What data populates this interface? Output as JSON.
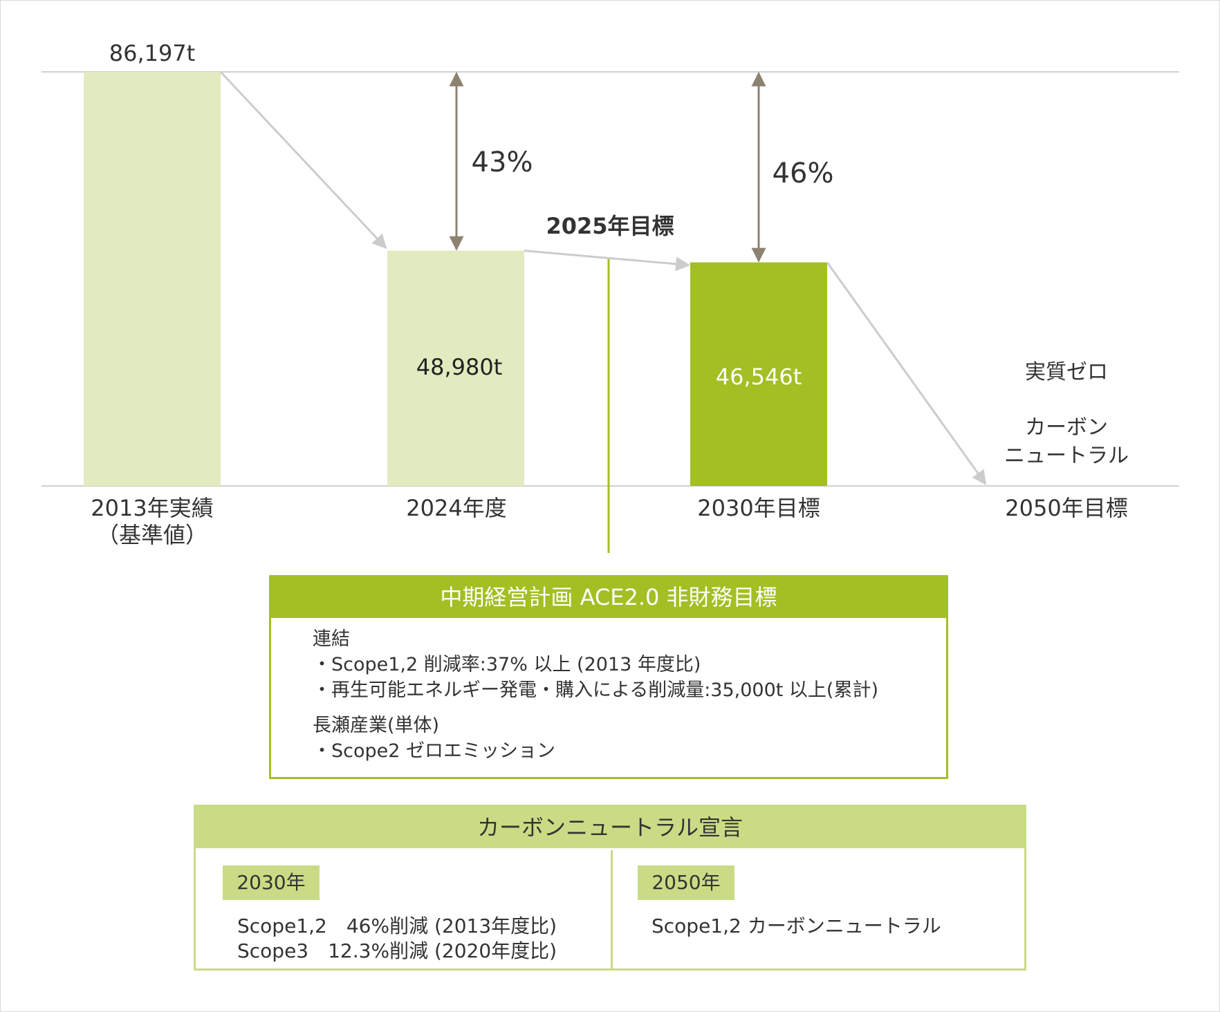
{
  "chart_data": {
    "type": "bar",
    "unit": "t",
    "categories": [
      "2013年実績\n（基準値）",
      "2024年度",
      "2030年目標",
      "2050年目標"
    ],
    "values": [
      86197,
      48980,
      46546,
      0
    ],
    "value_labels": [
      "86,197t",
      "48,980t",
      "46,546t",
      ""
    ],
    "bar_colors": [
      "#e1ebbf",
      "#e1ebbf",
      "#a2bf24"
    ],
    "reduction_labels": [
      "43%",
      "46%"
    ],
    "target_2025_label": "2025年目標",
    "zero_label_1": "実質ゼロ",
    "zero_label_2": "カーボン\nニュートラル"
  },
  "plan_box": {
    "title": "中期経営計画 ACE2.0 非財務目標",
    "section1_title": "連結",
    "section1_items": [
      "・Scope1,2 削減率:37% 以上 (2013 年度比)",
      "・再生可能エネルギー発電・購入による削減量:35,000t 以上(累計)"
    ],
    "section2_title": "長瀬産業(単体)",
    "section2_items": [
      "・Scope2 ゼロエミッション"
    ]
  },
  "declaration_box": {
    "title": "カーボンニュートラル宣言",
    "left_tag": "2030年",
    "left_lines": "Scope1,2　46%削減 (2013年度比)\nScope3　12.3%削減 (2020年度比)",
    "right_tag": "2050年",
    "right_lines": "Scope1,2 カーボンニュートラル"
  },
  "colors": {
    "light_green": "#e1ebbf",
    "green": "#a2bf24",
    "pale_green": "#c9dc85",
    "arrow_brown": "#8c8270",
    "connector_gray": "#cccccc"
  }
}
